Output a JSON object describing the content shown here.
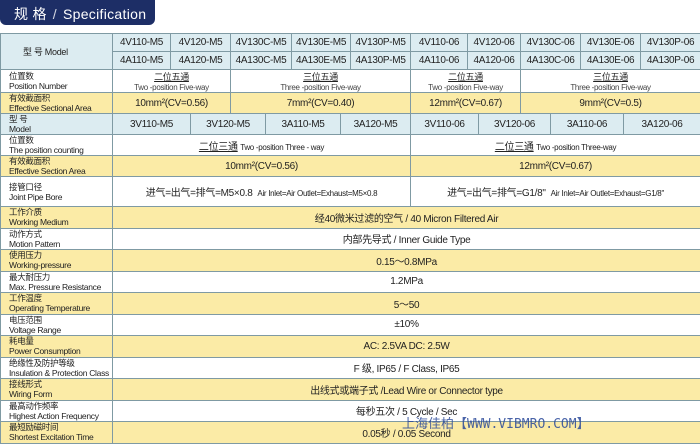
{
  "header": {
    "cn": "规 格",
    "sep": "/",
    "en": "Specification"
  },
  "five_way": {
    "model_label": "型 号 Model",
    "models_v": [
      "4V110-M5",
      "4V120-M5",
      "4V130C-M5",
      "4V130E-M5",
      "4V130P-M5",
      "4V110-06",
      "4V120-06",
      "4V130C-06",
      "4V130E-06",
      "4V130P-06"
    ],
    "models_a": [
      "4A110-M5",
      "4A120-M5",
      "4A130C-M5",
      "4A130E-M5",
      "4A130P-M5",
      "4A110-06",
      "4A120-06",
      "4A130C-06",
      "4A130E-06",
      "4A130P-06"
    ],
    "position_label": {
      "cn": "位置数",
      "en": "Position Number"
    },
    "positions": [
      {
        "cn": "二位五通",
        "en": "Two -position Five-way"
      },
      {
        "cn": "三位五通",
        "en": "Three -position Five-way"
      },
      {
        "cn": "二位五通",
        "en": "Two -position Five-way"
      },
      {
        "cn": "三位五通",
        "en": "Three -position Five-way"
      }
    ],
    "area_label": {
      "cn": "有效截面积",
      "en": "Effective Sectional Area"
    },
    "areas": [
      "10mm²(CV=0.56)",
      "7mm²(CV=0.40)",
      "12mm²(CV=0.67)",
      "9mm²(CV=0.5)"
    ]
  },
  "three_way": {
    "model_label": {
      "cn": "型 号",
      "en": "Model"
    },
    "models": [
      "3V110-M5",
      "3V120-M5",
      "3A110-M5",
      "3A120-M5",
      "3V110-06",
      "3V120-06",
      "3A110-06",
      "3A120-06"
    ],
    "position_label": {
      "cn": "位置数",
      "en": "The position counting"
    },
    "positions": [
      {
        "cn": "二位三通",
        "en": "Two -position  Three - way"
      },
      {
        "cn": "二位三通",
        "en": "Two -position  Three-way"
      }
    ],
    "area_label": {
      "cn": "有效截面积",
      "en": "Effective  Section Area"
    },
    "areas": [
      "10mm²(CV=0.56)",
      "12mm²(CV=0.67)"
    ],
    "pipe_label": {
      "cn": "接管口径",
      "en": "Joint Pipe Bore"
    },
    "pipes": [
      {
        "cn": "进气=出气=排气=M5×0.8",
        "en": "Air Inlet=Air Outlet=Exhaust=M5×0.8"
      },
      {
        "cn": "进气=出气=排气=G1/8\"",
        "en": "Air Inlet=Air Outlet=Exhaust=G1/8\""
      }
    ]
  },
  "common": [
    {
      "cn": "工作介质",
      "en": "Working  Medium",
      "value": "经40微米过滤的空气 / 40 Micron Filtered Air"
    },
    {
      "cn": "动作方式",
      "en": "Motion Pattern",
      "value": "内部先导式 / Inner Guide Type"
    },
    {
      "cn": "使用压力",
      "en": "Working-pressure",
      "value": "0.15～0.8MPa"
    },
    {
      "cn": "最大耐压力",
      "en": "Max. Pressure Resistance",
      "value": "1.2MPa"
    },
    {
      "cn": "工作温度",
      "en": "Operating Temperature",
      "value": "5～50"
    },
    {
      "cn": "电压范围",
      "en": "Voltage Range",
      "value": "±10%"
    },
    {
      "cn": "耗电量",
      "en": "Power Consumption",
      "value": "AC: 2.5VA     DC: 2.5W"
    },
    {
      "cn": "绝缘性及防护等级",
      "en": "Insulation & Protection Class",
      "value": "F 级, IP65 / F Class, IP65"
    },
    {
      "cn": "接线形式",
      "en": "Wiring Form",
      "value": "出线式或端子式 /Lead Wire or Connector type"
    },
    {
      "cn": "最高动作频率",
      "en": "Highest Action Frequency",
      "value": "每秒五次 / 5 Cycle / Sec"
    },
    {
      "cn": "最短励磁时间",
      "en": "Shortest Excitation Time",
      "value": "0.05秒 / 0.05 Second"
    }
  ],
  "watermark": "上海佳柏【WWW.VIBMRO.COM】"
}
